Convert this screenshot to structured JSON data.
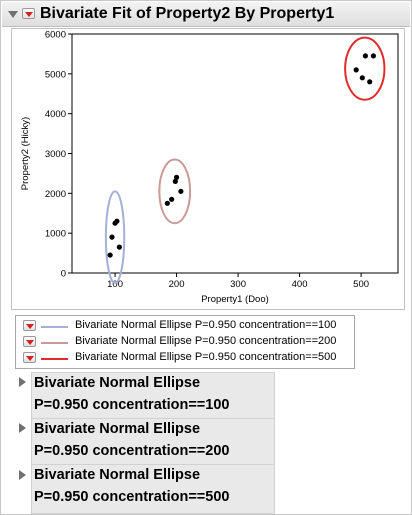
{
  "window": {
    "title": "Bivariate Fit of Property2 By Property1"
  },
  "chart_data": {
    "type": "scatter",
    "xlabel": "Property1 (Doo)",
    "ylabel": "Property2 (Hicky)",
    "xlim": [
      30,
      560
    ],
    "ylim": [
      0,
      6000
    ],
    "xticks": [
      100,
      200,
      300,
      400,
      500
    ],
    "yticks": [
      0,
      1000,
      2000,
      3000,
      4000,
      5000,
      6000
    ],
    "grid": false,
    "points": [
      {
        "x": 92,
        "y": 450
      },
      {
        "x": 95,
        "y": 900
      },
      {
        "x": 100,
        "y": 1250
      },
      {
        "x": 103,
        "y": 1300
      },
      {
        "x": 107,
        "y": 650
      },
      {
        "x": 185,
        "y": 1750
      },
      {
        "x": 192,
        "y": 1850
      },
      {
        "x": 198,
        "y": 2300
      },
      {
        "x": 200,
        "y": 2400
      },
      {
        "x": 207,
        "y": 2050
      },
      {
        "x": 492,
        "y": 5100
      },
      {
        "x": 502,
        "y": 4900
      },
      {
        "x": 507,
        "y": 5450
      },
      {
        "x": 514,
        "y": 4800
      },
      {
        "x": 520,
        "y": 5450
      }
    ],
    "ellipses": [
      {
        "name": "Bivariate Normal Ellipse P=0.950 concentration==100",
        "color": "#a6b0d6",
        "cx": 100,
        "cy": 900,
        "rx": 15,
        "ry": 1150,
        "angle": 0
      },
      {
        "name": "Bivariate Normal Ellipse P=0.950 concentration==200",
        "color": "#c99a96",
        "cx": 197,
        "cy": 2050,
        "rx": 25,
        "ry": 800,
        "angle": 0
      },
      {
        "name": "Bivariate Normal Ellipse P=0.950 concentration==500",
        "color": "#e22b2b",
        "cx": 506,
        "cy": 5130,
        "rx": 32,
        "ry": 780,
        "angle": 0
      }
    ]
  },
  "legend": [
    {
      "label": "Bivariate Normal Ellipse P=0.950 concentration==100",
      "color": "#a6b0d6"
    },
    {
      "label": "Bivariate Normal Ellipse P=0.950 concentration==200",
      "color": "#c99a96"
    },
    {
      "label": "Bivariate Normal Ellipse P=0.950 concentration==500",
      "color": "#e22b2b"
    }
  ],
  "reports": [
    {
      "line1": "Bivariate Normal Ellipse",
      "line2": "P=0.950 concentration==100"
    },
    {
      "line1": "Bivariate Normal Ellipse",
      "line2": "P=0.950 concentration==200"
    },
    {
      "line1": "Bivariate Normal Ellipse",
      "line2": "P=0.950 concentration==500"
    }
  ]
}
